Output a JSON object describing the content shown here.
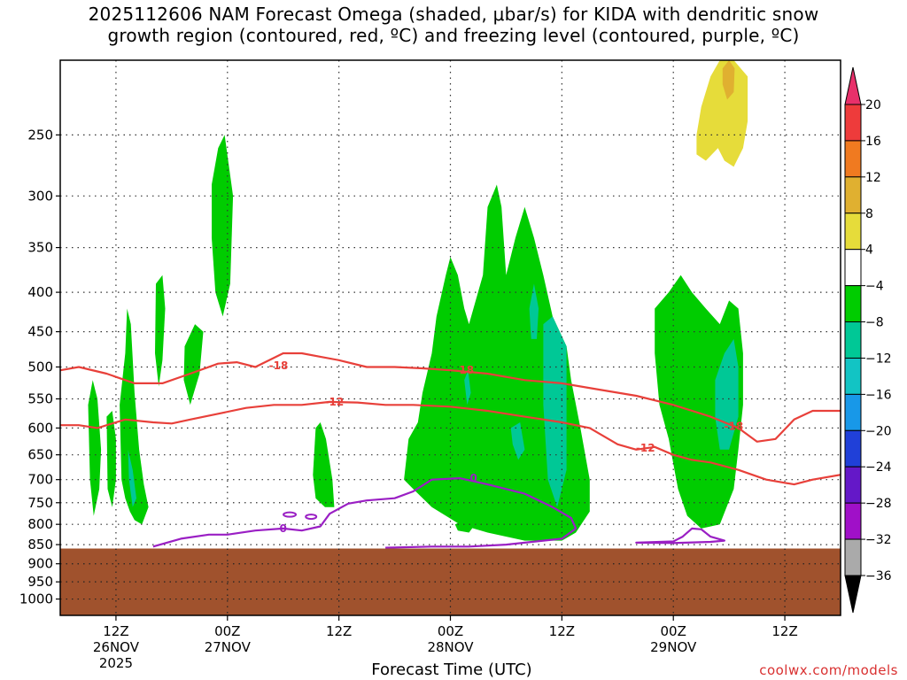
{
  "title": {
    "line1": "2025112606 NAM Forecast Omega (shaded, μbar/s) for KIDA with dendritic snow",
    "line2": "growth region (contoured, red, ºC) and freezing level (contoured, purple, ºC)"
  },
  "source_label": "coolwx.com/models",
  "colors": {
    "dgz_contour": "#e8403a",
    "freezing_contour": "#9a1fc4",
    "terrain": "#a0522d",
    "grid": "#333333"
  },
  "chart_data": {
    "type": "heatmap",
    "xlabel": "Forecast Time (UTC)",
    "ylabel": "",
    "x_range_hours": [
      0,
      84
    ],
    "y_range_hpa": [
      1050,
      200
    ],
    "y_scale": "log-pressure",
    "grid": true,
    "x_ticks": [
      {
        "hour": 6,
        "label": "12Z",
        "date": "26NOV",
        "year": "2025"
      },
      {
        "hour": 18,
        "label": "00Z",
        "date": "27NOV",
        "year": ""
      },
      {
        "hour": 30,
        "label": "12Z",
        "date": "",
        "year": ""
      },
      {
        "hour": 42,
        "label": "00Z",
        "date": "28NOV",
        "year": ""
      },
      {
        "hour": 54,
        "label": "12Z",
        "date": "",
        "year": ""
      },
      {
        "hour": 66,
        "label": "00Z",
        "date": "29NOV",
        "year": ""
      },
      {
        "hour": 78,
        "label": "12Z",
        "date": "",
        "year": ""
      }
    ],
    "y_ticks": [
      "250",
      "300",
      "350",
      "400",
      "450",
      "500",
      "550",
      "600",
      "650",
      "700",
      "750",
      "800",
      "850",
      "900",
      "950",
      "1000"
    ],
    "colorbar": {
      "levels": [
        "20",
        "16",
        "12",
        "8",
        "4",
        "−4",
        "−8",
        "−12",
        "−16",
        "−20",
        "−24",
        "−28",
        "−32",
        "−36"
      ],
      "colors": [
        "#e8306a",
        "#ee3b3b",
        "#f07a20",
        "#e0b030",
        "#e6dc3a",
        "#ffffff",
        "#00cc00",
        "#00c896",
        "#12c4c4",
        "#1898e8",
        "#2040d8",
        "#6418c8",
        "#a010c8",
        "#aaaaaa",
        "#000000"
      ]
    },
    "omega_regions": [
      {
        "name": "upward motion",
        "range": "-4 to -8",
        "approx_time_hours": [
          3,
          10
        ],
        "approx_pressure_hpa": [
          800,
          400
        ]
      },
      {
        "name": "upward motion",
        "range": "-4 to -8",
        "approx_time_hours": [
          16,
          19
        ],
        "approx_pressure_hpa": [
          430,
          250
        ]
      },
      {
        "name": "upward motion",
        "range": "-4 to -8",
        "approx_time_hours": [
          27,
          29
        ],
        "approx_pressure_hpa": [
          750,
          580
        ]
      },
      {
        "name": "upward motion",
        "range": "-4 to -12",
        "approx_time_hours": [
          37,
          57
        ],
        "approx_pressure_hpa": [
          850,
          300
        ]
      },
      {
        "name": "upward motion",
        "range": "-4 to -12",
        "approx_time_hours": [
          64,
          74
        ],
        "approx_pressure_hpa": [
          830,
          370
        ]
      },
      {
        "name": "downward motion",
        "range": "4 to 12",
        "approx_time_hours": [
          68,
          74
        ],
        "approx_pressure_hpa": [
          280,
          200
        ]
      }
    ],
    "contours": [
      {
        "label": "-18",
        "color": "red",
        "points": [
          [
            0,
            505
          ],
          [
            2,
            500
          ],
          [
            5,
            510
          ],
          [
            8,
            525
          ],
          [
            11,
            525
          ],
          [
            14,
            510
          ],
          [
            17,
            495
          ],
          [
            19,
            493
          ],
          [
            21,
            500
          ],
          [
            24,
            480
          ],
          [
            26,
            480
          ],
          [
            28,
            485
          ],
          [
            30,
            490
          ],
          [
            33,
            500
          ],
          [
            36,
            500
          ],
          [
            39,
            502
          ],
          [
            42,
            505
          ],
          [
            46,
            510
          ],
          [
            50,
            520
          ],
          [
            54,
            525
          ],
          [
            58,
            535
          ],
          [
            62,
            545
          ],
          [
            66,
            560
          ],
          [
            70,
            580
          ],
          [
            73,
            600
          ],
          [
            75,
            625
          ],
          [
            77,
            620
          ],
          [
            79,
            585
          ],
          [
            81,
            570
          ],
          [
            84,
            570
          ]
        ]
      },
      {
        "label": "-12",
        "color": "red",
        "points": [
          [
            0,
            595
          ],
          [
            2,
            595
          ],
          [
            4,
            600
          ],
          [
            7,
            585
          ],
          [
            10,
            590
          ],
          [
            12,
            592
          ],
          [
            14,
            585
          ],
          [
            17,
            575
          ],
          [
            20,
            565
          ],
          [
            23,
            560
          ],
          [
            26,
            560
          ],
          [
            29,
            555
          ],
          [
            32,
            556
          ],
          [
            35,
            560
          ],
          [
            38,
            560
          ],
          [
            42,
            563
          ],
          [
            46,
            570
          ],
          [
            50,
            580
          ],
          [
            54,
            590
          ],
          [
            57,
            600
          ],
          [
            60,
            630
          ],
          [
            62,
            640
          ],
          [
            64,
            635
          ],
          [
            66,
            650
          ],
          [
            68,
            660
          ],
          [
            70,
            665
          ],
          [
            73,
            680
          ],
          [
            76,
            700
          ],
          [
            79,
            710
          ],
          [
            81,
            700
          ],
          [
            84,
            690
          ]
        ]
      },
      {
        "label": "0",
        "color": "purple",
        "points": [
          [
            10,
            855
          ],
          [
            13,
            835
          ],
          [
            16,
            825
          ],
          [
            18,
            825
          ],
          [
            21,
            815
          ],
          [
            24,
            810
          ],
          [
            26,
            815
          ],
          [
            28,
            805
          ],
          [
            29,
            775
          ],
          [
            31,
            752
          ],
          [
            33,
            745
          ],
          [
            36,
            740
          ],
          [
            38,
            725
          ],
          [
            40,
            700
          ],
          [
            43,
            697
          ],
          [
            46,
            710
          ],
          [
            50,
            730
          ],
          [
            53,
            760
          ],
          [
            55,
            785
          ],
          [
            55.5,
            810
          ],
          [
            54,
            835
          ],
          [
            52,
            840
          ],
          [
            48,
            850
          ],
          [
            44,
            855
          ],
          [
            40,
            855
          ],
          [
            35,
            858
          ]
        ]
      },
      {
        "label": "0",
        "color": "purple",
        "points": [
          [
            62,
            845
          ],
          [
            66,
            842
          ],
          [
            67,
            830
          ],
          [
            68,
            810
          ],
          [
            69,
            812
          ],
          [
            70,
            830
          ],
          [
            71.5,
            840
          ],
          [
            70,
            843
          ],
          [
            66,
            846
          ]
        ]
      }
    ],
    "terrain_top_pressure_hpa": 860
  }
}
